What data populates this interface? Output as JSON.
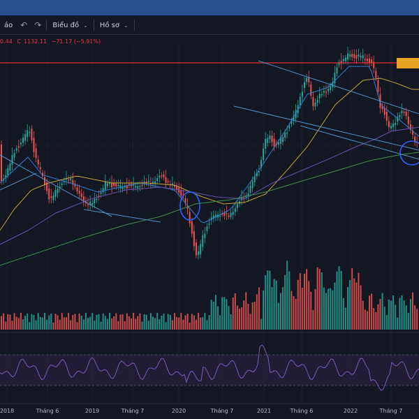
{
  "toolbar": {
    "items": [
      {
        "label": "áo",
        "name": "toolbar-alerts"
      },
      {
        "label": "Biểu đồ",
        "name": "toolbar-chart"
      },
      {
        "label": "Hồ sơ",
        "name": "toolbar-profile"
      }
    ]
  },
  "legend": {
    "open_fragment": "0.44",
    "close_label": "C",
    "close_value": "1132.11",
    "change": "−71.17 (−5.91%)"
  },
  "colors": {
    "up": "#26a69a",
    "down": "#ef5350",
    "ma_fast": "#2f7dd6",
    "ma_mid": "#c8a23c",
    "ma_slow": "#6a4fb0",
    "ma_long": "#3f8f4a",
    "horizontal_line": "#e03030",
    "trendline": "#4a90c8",
    "circle": "#2962ff",
    "rsi": "#7e57c2"
  },
  "chart_data": {
    "type": "candlestick",
    "x_ticks": [
      "2018",
      "Tháng 6",
      "2019",
      "Tháng 7",
      "2020",
      "Tháng 7",
      "2021",
      "Tháng 6",
      "2022",
      "Tháng 7"
    ],
    "last_close": 1132.11,
    "change": -71.17,
    "change_pct": -5.91
  }
}
